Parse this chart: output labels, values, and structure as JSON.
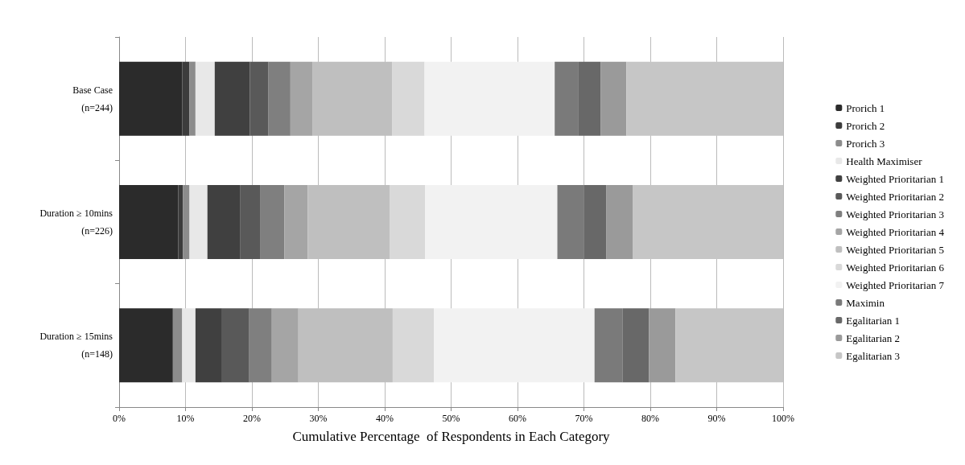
{
  "chart_data": {
    "type": "bar",
    "orientation": "horizontal",
    "stacked": true,
    "xlabel": "Cumulative Percentage  of Respondents in Each Category",
    "categories": [
      "Base Case\n(n=244)",
      "Duration ≥ 10mins\n(n=226)",
      "Duration ≥ 15mins\n(n=148)"
    ],
    "xlim": [
      0,
      100
    ],
    "xticks": [
      {
        "value": 0,
        "label": "0%"
      },
      {
        "value": 10,
        "label": "10%"
      },
      {
        "value": 20,
        "label": "20%"
      },
      {
        "value": 30,
        "label": "30%"
      },
      {
        "value": 40,
        "label": "40%"
      },
      {
        "value": 50,
        "label": "50%"
      },
      {
        "value": 60,
        "label": "60%"
      },
      {
        "value": 70,
        "label": "70%"
      },
      {
        "value": 80,
        "label": "80%"
      },
      {
        "value": 90,
        "label": "90%"
      },
      {
        "value": 100,
        "label": "100%"
      }
    ],
    "grid": "x",
    "legend": "right",
    "series": [
      {
        "name": "Prorich 1",
        "color": "#2b2b2b",
        "values": [
          9.5,
          8.9,
          8.1
        ]
      },
      {
        "name": "Prorich 2",
        "color": "#3c3c3c",
        "values": [
          1.1,
          0.7,
          0
        ]
      },
      {
        "name": "Prorich 3",
        "color": "#8c8c8c",
        "values": [
          0.9,
          1.0,
          1.4
        ]
      },
      {
        "name": "Health Maximiser",
        "color": "#e8e8e8",
        "values": [
          2.9,
          2.7,
          2.0
        ]
      },
      {
        "name": "Weighted Prioritarian 1",
        "color": "#404040",
        "values": [
          5.3,
          4.9,
          4.0
        ]
      },
      {
        "name": "Weighted Prioritarian 2",
        "color": "#595959",
        "values": [
          2.8,
          3.1,
          4.1
        ]
      },
      {
        "name": "Weighted Prioritarian 3",
        "color": "#7f7f7f",
        "values": [
          3.3,
          3.6,
          3.4
        ]
      },
      {
        "name": "Weighted Prioritarian 4",
        "color": "#a5a5a5",
        "values": [
          3.3,
          3.5,
          4.0
        ]
      },
      {
        "name": "Weighted Prioritarian 5",
        "color": "#bfbfbf",
        "values": [
          12.0,
          12.4,
          14.2
        ]
      },
      {
        "name": "Weighted Prioritarian 6",
        "color": "#d9d9d9",
        "values": [
          4.9,
          5.3,
          6.2
        ]
      },
      {
        "name": "Weighted Prioritarian 7",
        "color": "#f2f2f2",
        "values": [
          19.6,
          19.9,
          24.2
        ]
      },
      {
        "name": "Maximin",
        "color": "#7a7a7a",
        "values": [
          3.6,
          4.0,
          4.2
        ]
      },
      {
        "name": "Egalitarian 1",
        "color": "#686868",
        "values": [
          3.3,
          3.4,
          4.0
        ]
      },
      {
        "name": "Egalitarian 2",
        "color": "#9a9a9a",
        "values": [
          3.9,
          4.0,
          4.0
        ]
      },
      {
        "name": "Egalitarian 3",
        "color": "#c6c6c6",
        "values": [
          23.6,
          22.6,
          16.2
        ]
      }
    ]
  }
}
